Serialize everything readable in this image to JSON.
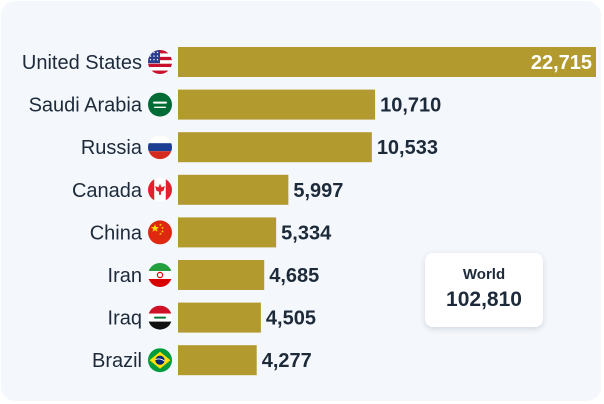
{
  "chart_data": {
    "type": "bar",
    "orientation": "horizontal",
    "title": "",
    "xlabel": "",
    "ylabel": "",
    "categories": [
      "United States",
      "Saudi Arabia",
      "Russia",
      "Canada",
      "China",
      "Iran",
      "Iraq",
      "Brazil"
    ],
    "values": [
      22715,
      10710,
      10533,
      5997,
      5334,
      4685,
      4505,
      4277
    ],
    "value_labels": [
      "22,715",
      "10,710",
      "10,533",
      "5,997",
      "5,334",
      "4,685",
      "4,505",
      "4,277"
    ],
    "flags": [
      "us-flag-icon",
      "saudi-arabia-flag-icon",
      "russia-flag-icon",
      "canada-flag-icon",
      "china-flag-icon",
      "iran-flag-icon",
      "iraq-flag-icon",
      "brazil-flag-icon"
    ],
    "xlim": [
      0,
      22715
    ],
    "bar_color": "#b39a2f",
    "grid": false,
    "legend": "none"
  },
  "summary": {
    "title": "World",
    "value": "102,810"
  }
}
